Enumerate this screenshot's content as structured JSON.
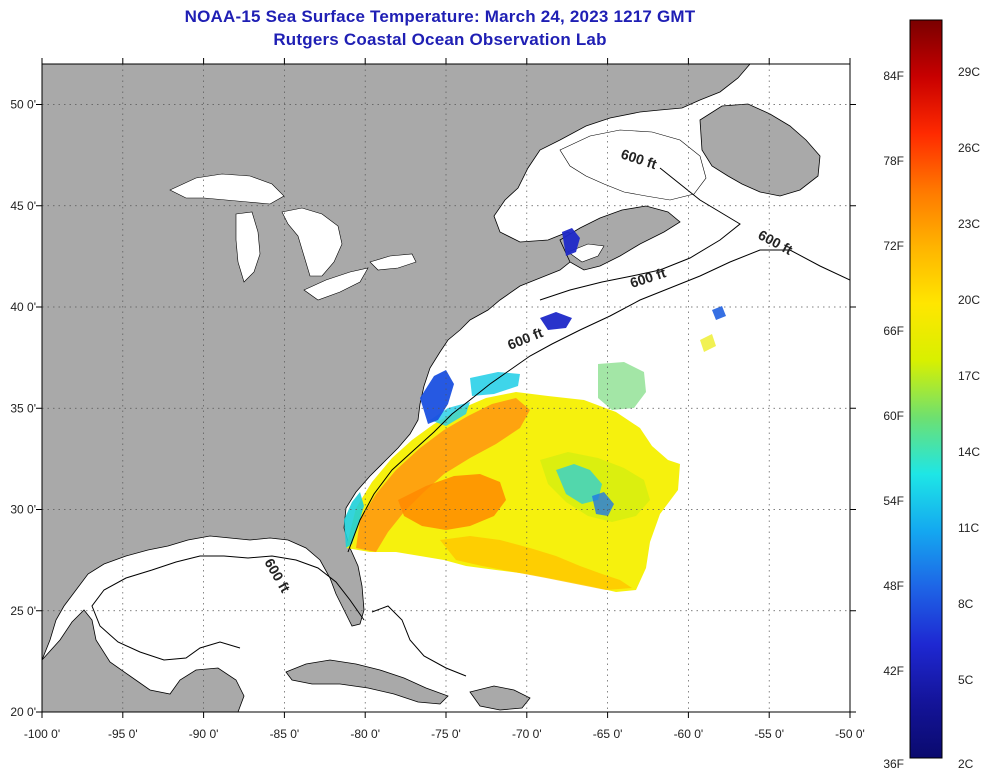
{
  "title": "NOAA-15 Sea Surface Temperature:  March 24, 2023 1217 GMT",
  "subtitle": "Rutgers Coastal Ocean Observation Lab",
  "axes": {
    "lon_ticks": [
      "-100 0'",
      "-95 0'",
      "-90 0'",
      "-85 0'",
      "-80 0'",
      "-75 0'",
      "-70 0'",
      "-65 0'",
      "-60 0'",
      "-55 0'",
      "-50 0'"
    ],
    "lat_ticks": [
      "50 0'",
      "45 0'",
      "40 0'",
      "35 0'",
      "30 0'",
      "25 0'",
      "20 0'"
    ],
    "lon_range": [
      -100,
      -50
    ],
    "lat_range": [
      20,
      52
    ]
  },
  "contour_labels": [
    "600 ft",
    "600 ft",
    "600 ft",
    "600 ft",
    "600 ft"
  ],
  "colorbar": {
    "fahrenheit": [
      "84F",
      "78F",
      "72F",
      "66F",
      "60F",
      "54F",
      "48F",
      "42F",
      "36F"
    ],
    "celsius": [
      "29C",
      "26C",
      "23C",
      "20C",
      "17C",
      "14C",
      "11C",
      "8C",
      "5C",
      "2C"
    ],
    "colors": [
      "#7a0000",
      "#c80000",
      "#ff2a00",
      "#ff7800",
      "#ffb400",
      "#ffe600",
      "#d8f000",
      "#6ee070",
      "#1ee6e6",
      "#14a8f0",
      "#1e64e6",
      "#1e28d2",
      "#14149a",
      "#0a0a6e"
    ]
  },
  "colors": {
    "land": "#a9a9a9",
    "ocean": "#ffffff",
    "title": "#1f1fb4"
  }
}
